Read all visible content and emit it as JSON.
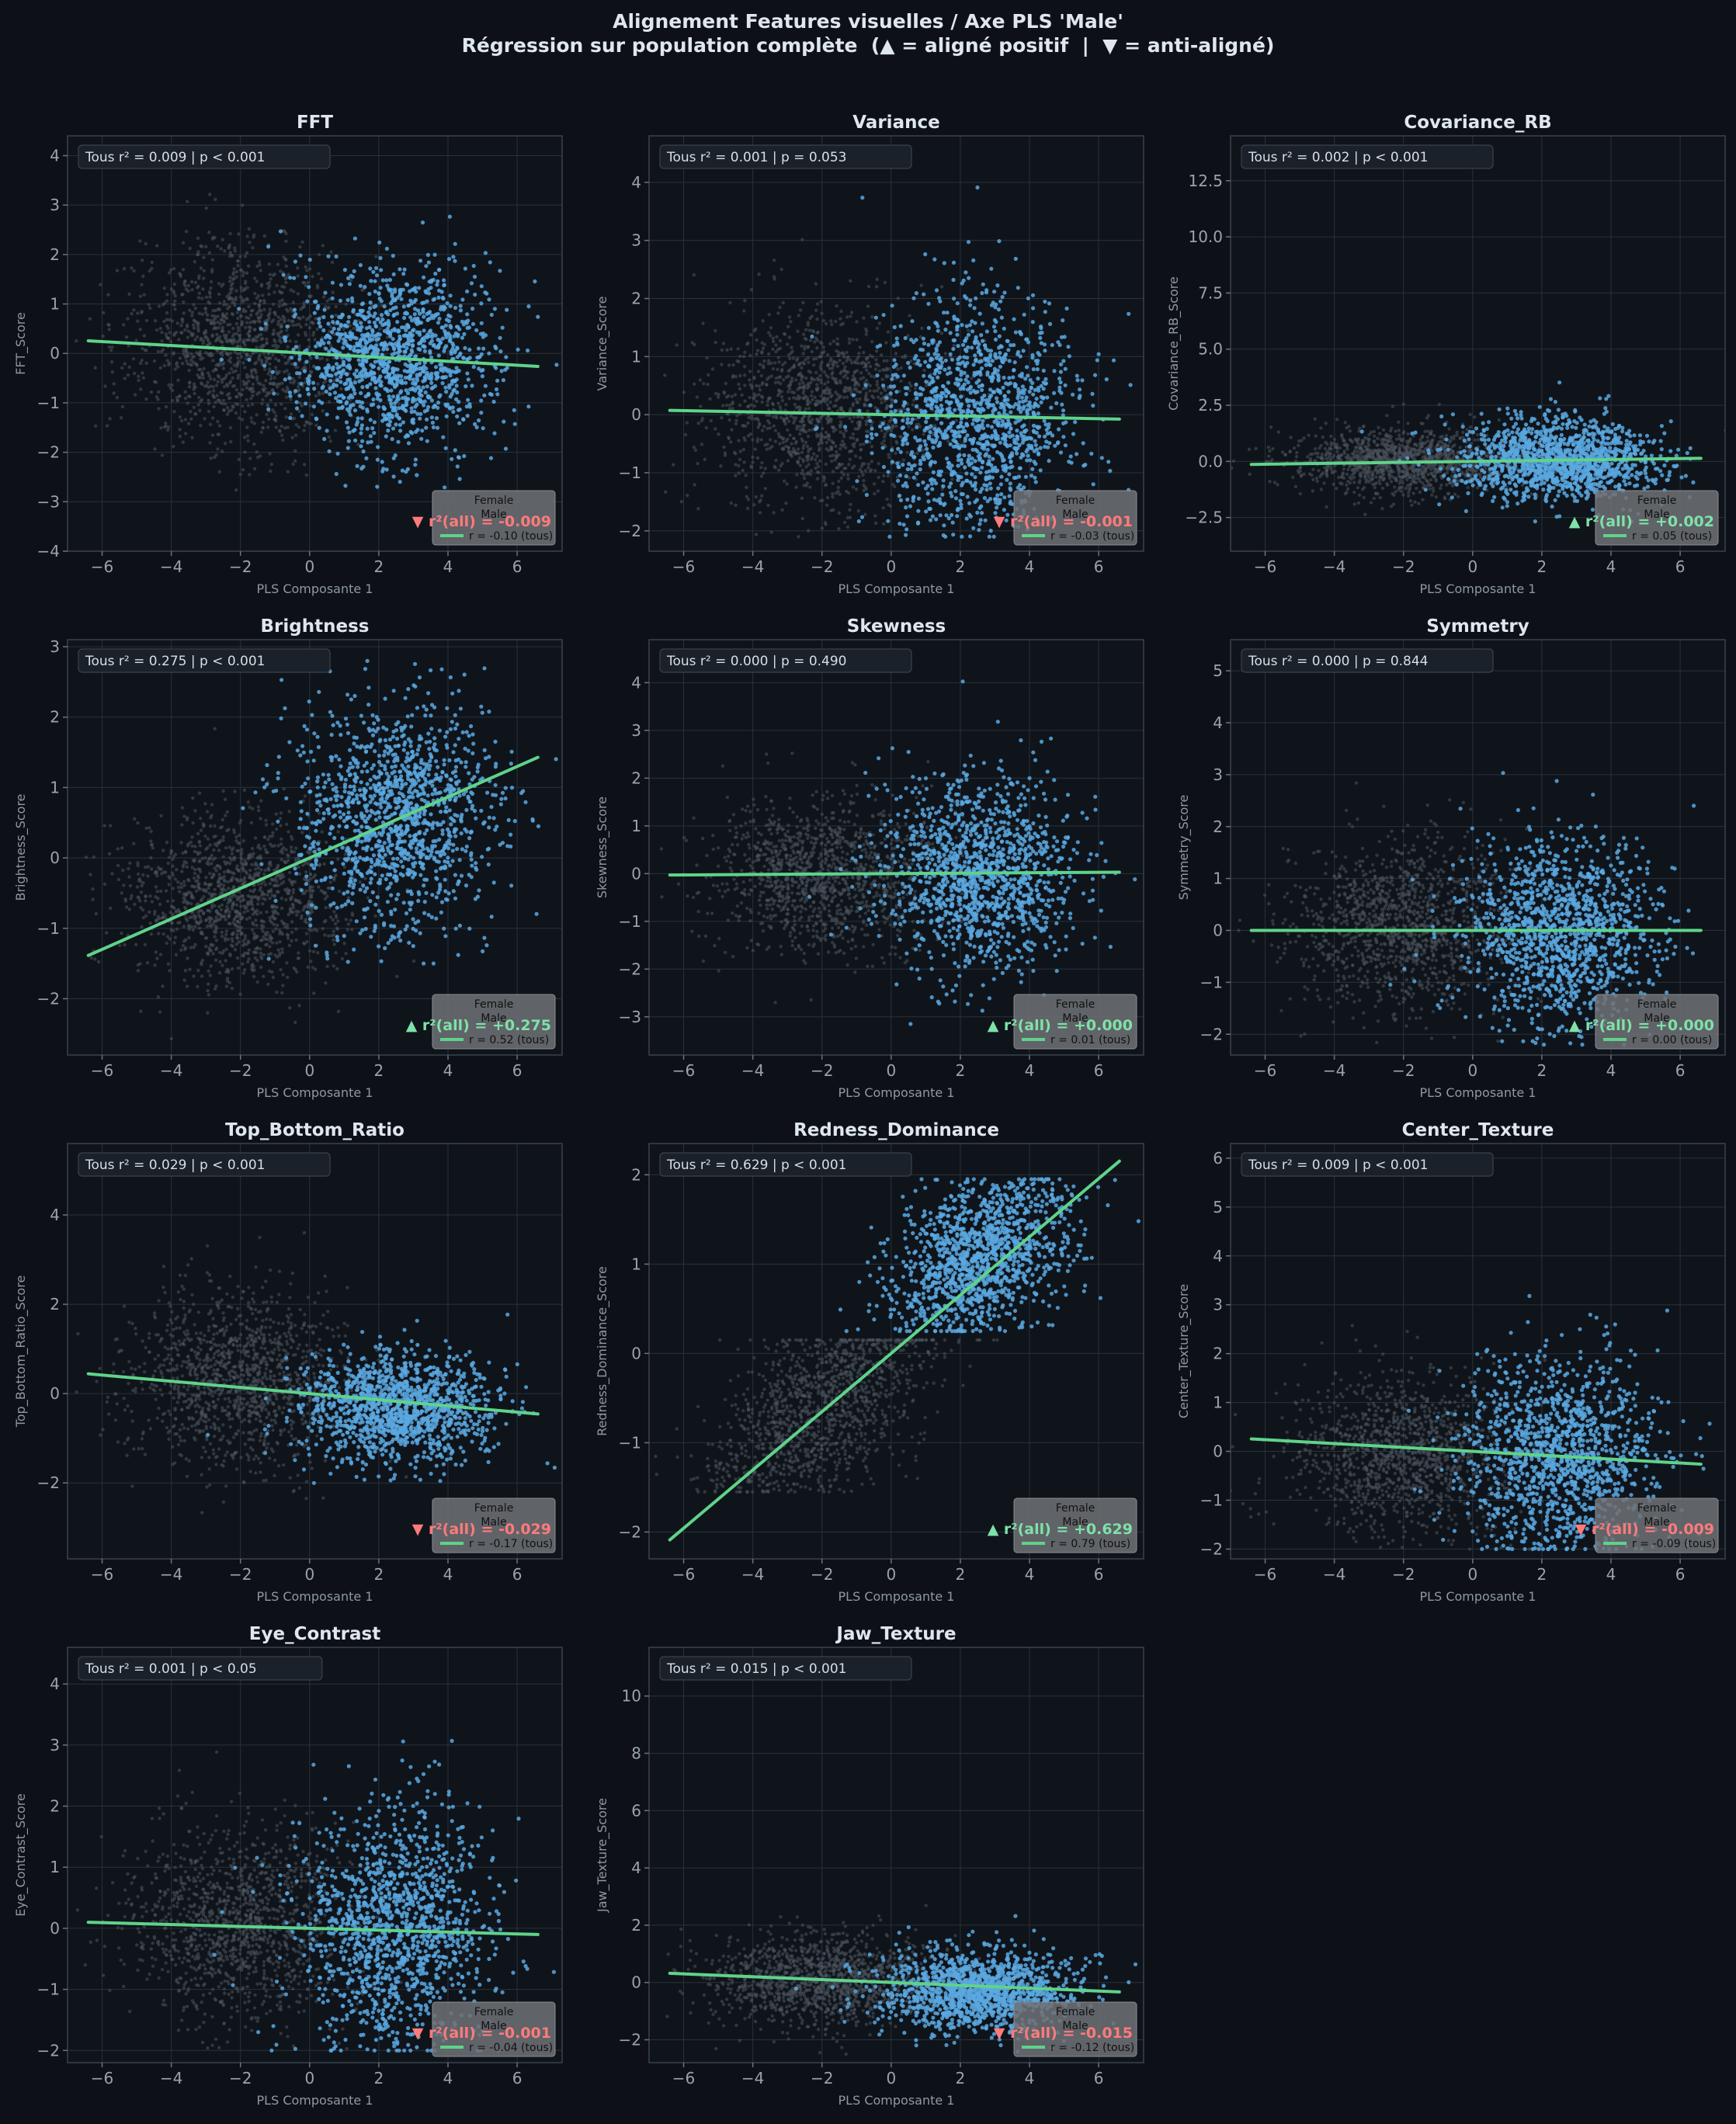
{
  "title_line1": "Alignement Features visuelles / Axe PLS 'Male'",
  "title_line2": "Régression sur population complète  (▲ = aligné positif  |  ▼ = anti-aligné)",
  "colors": {
    "background": "#0d1117",
    "panel": "#0f141b",
    "female_points": "#4d535c",
    "male_points": "#5ba8e0",
    "regression_line": "#5fd38a",
    "positive": "#7ee2a8",
    "negative": "#ff7b7b",
    "text": "#dfe6ee",
    "tick_text": "#9aa3ad"
  },
  "legend_labels": {
    "female": "Female",
    "male": "Male"
  },
  "chart_data": [
    {
      "type": "scatter",
      "title": "FFT",
      "xlabel": "PLS Composante 1",
      "ylabel": "FFT_Score",
      "xlim": [
        -7,
        7.3
      ],
      "ylim": [
        -4,
        4.4
      ],
      "xticks": [
        -6,
        -4,
        -2,
        0,
        2,
        4,
        6
      ],
      "yticks": [
        -4,
        -3,
        -2,
        -1,
        0,
        1,
        2,
        3,
        4
      ],
      "ytick_decimals": 0,
      "info": "Tous  r² = 0.009  |  p < 0.001",
      "r2_label": "r²(all) = -0.009",
      "direction": "negative",
      "r_label": "r = -0.10 (tous)",
      "regression": {
        "slope": -0.0398,
        "intercept": 0.0
      },
      "female": {
        "cx": -2.0,
        "sx": 1.6,
        "cy": 0.2,
        "sy": 1.0,
        "slope": 0.0,
        "ymin": -3.5,
        "ymax": 3.8
      },
      "male": {
        "cx": 2.5,
        "sx": 1.4,
        "cy": -0.1,
        "sy": 0.9,
        "slope": 0.0,
        "ymin": -3.3,
        "ymax": 3.9
      }
    },
    {
      "type": "scatter",
      "title": "Variance",
      "xlabel": "PLS Composante 1",
      "ylabel": "Variance_Score",
      "xlim": [
        -7,
        7.3
      ],
      "ylim": [
        -2.35,
        4.8
      ],
      "xticks": [
        -6,
        -4,
        -2,
        0,
        2,
        4,
        6
      ],
      "yticks": [
        -2,
        -1,
        0,
        1,
        2,
        3,
        4
      ],
      "ytick_decimals": 0,
      "info": "Tous  r² = 0.001  |  p = 0.053",
      "r2_label": "r²(all) = -0.001",
      "direction": "negative",
      "r_label": "r = -0.03 (tous)",
      "regression": {
        "slope": -0.0115,
        "intercept": -0.0
      },
      "female": {
        "cx": -2.0,
        "sx": 1.6,
        "cy": 0.1,
        "sy": 0.8,
        "slope": 0.0,
        "ymin": -2.1,
        "ymax": 3.4
      },
      "male": {
        "cx": 2.5,
        "sx": 1.4,
        "cy": 0.0,
        "sy": 1.0,
        "slope": 0.0,
        "ymin": -2.1,
        "ymax": 4.3
      }
    },
    {
      "type": "scatter",
      "title": "Covariance_RB",
      "xlabel": "PLS Composante 1",
      "ylabel": "Covariance_RB_Score",
      "xlim": [
        -7,
        7.3
      ],
      "ylim": [
        -4.0,
        14.5
      ],
      "xticks": [
        -6,
        -4,
        -2,
        0,
        2,
        4,
        6
      ],
      "yticks": [
        -2.5,
        0.0,
        2.5,
        5.0,
        7.5,
        10.0,
        12.5
      ],
      "ytick_decimals": 1,
      "info": "Tous  r² = 0.002  |  p < 0.001",
      "r2_label": "r²(all) = +0.002",
      "direction": "positive",
      "r_label": "r = 0.05 (tous)",
      "regression": {
        "slope": 0.0209,
        "intercept": 0.0
      },
      "female": {
        "cx": -2.0,
        "sx": 1.6,
        "cy": 0.0,
        "sy": 0.7,
        "slope": 0.0,
        "ymin": -2.5,
        "ymax": 5.0
      },
      "male": {
        "cx": 2.5,
        "sx": 1.4,
        "cy": 0.1,
        "sy": 0.9,
        "slope": 0.0,
        "ymin": -2.7,
        "ymax": 9.0
      }
    },
    {
      "type": "scatter",
      "title": "Brightness",
      "xlabel": "PLS Composante 1",
      "ylabel": "Brightness_Score",
      "xlim": [
        -7,
        7.3
      ],
      "ylim": [
        -2.8,
        3.1
      ],
      "xticks": [
        -6,
        -4,
        -2,
        0,
        2,
        4,
        6
      ],
      "yticks": [
        -2,
        -1,
        0,
        1,
        2,
        3
      ],
      "ytick_decimals": 0,
      "info": "Tous  r² = 0.275  |  p < 0.001",
      "r2_label": "r²(all) = +0.275",
      "direction": "positive",
      "r_label": "r = 0.52 (tous)",
      "regression": {
        "slope": 0.2165,
        "intercept": 0.0
      },
      "female": {
        "cx": -2.0,
        "sx": 1.6,
        "cy": -0.6,
        "sy": 0.6,
        "slope": 0.0,
        "ymin": -2.7,
        "ymax": 2.0
      },
      "male": {
        "cx": 2.5,
        "sx": 1.4,
        "cy": 0.6,
        "sy": 0.8,
        "slope": 0.0,
        "ymin": -1.5,
        "ymax": 2.8
      }
    },
    {
      "type": "scatter",
      "title": "Skewness",
      "xlabel": "PLS Composante 1",
      "ylabel": "Skewness_Score",
      "xlim": [
        -7,
        7.3
      ],
      "ylim": [
        -3.8,
        4.9
      ],
      "xticks": [
        -6,
        -4,
        -2,
        0,
        2,
        4,
        6
      ],
      "yticks": [
        -3,
        -2,
        -1,
        0,
        1,
        2,
        3,
        4
      ],
      "ytick_decimals": 0,
      "info": "Tous  r² = 0.000  |  p = 0.490",
      "r2_label": "r²(all) = +0.000",
      "direction": "positive",
      "r_label": "r = 0.01 (tous)",
      "regression": {
        "slope": 0.0046,
        "intercept": 0.0
      },
      "female": {
        "cx": -2.0,
        "sx": 1.6,
        "cy": 0.0,
        "sy": 0.8,
        "slope": 0.0,
        "ymin": -3.2,
        "ymax": 3.6
      },
      "male": {
        "cx": 2.5,
        "sx": 1.4,
        "cy": 0.0,
        "sy": 1.0,
        "slope": 0.0,
        "ymin": -3.3,
        "ymax": 4.5
      }
    },
    {
      "type": "scatter",
      "title": "Symmetry",
      "xlabel": "PLS Composante 1",
      "ylabel": "Symmetry_Score",
      "xlim": [
        -7,
        7.3
      ],
      "ylim": [
        -2.4,
        5.6
      ],
      "xticks": [
        -6,
        -4,
        -2,
        0,
        2,
        4,
        6
      ],
      "yticks": [
        -2,
        -1,
        0,
        1,
        2,
        3,
        4,
        5
      ],
      "ytick_decimals": 0,
      "info": "Tous  r² = 0.000  |  p = 0.844",
      "r2_label": "r²(all) = +0.000",
      "direction": "positive",
      "r_label": "r = 0.00 (tous)",
      "regression": {
        "slope": 0.0,
        "intercept": 0.0
      },
      "female": {
        "cx": -2.0,
        "sx": 1.6,
        "cy": 0.1,
        "sy": 0.8,
        "slope": 0.0,
        "ymin": -2.2,
        "ymax": 4.4
      },
      "male": {
        "cx": 2.5,
        "sx": 1.4,
        "cy": 0.0,
        "sy": 0.9,
        "slope": 0.0,
        "ymin": -2.2,
        "ymax": 5.0
      }
    },
    {
      "type": "scatter",
      "title": "Top_Bottom_Ratio",
      "xlabel": "PLS Composante 1",
      "ylabel": "Top_Bottom_Ratio_Score",
      "xlim": [
        -7,
        7.3
      ],
      "ylim": [
        -3.7,
        5.6
      ],
      "xticks": [
        -6,
        -4,
        -2,
        0,
        2,
        4,
        6
      ],
      "yticks": [
        -2,
        0,
        2,
        4
      ],
      "ytick_decimals": 0,
      "info": "Tous  r² = 0.029  |  p < 0.001",
      "r2_label": "r²(all) = -0.029",
      "direction": "negative",
      "r_label": "r = -0.17 (tous)",
      "regression": {
        "slope": -0.0692,
        "intercept": 0.0
      },
      "female": {
        "cx": -2.0,
        "sx": 1.6,
        "cy": 0.3,
        "sy": 1.0,
        "slope": 0.0,
        "ymin": -3.0,
        "ymax": 5.0
      },
      "male": {
        "cx": 2.5,
        "sx": 1.4,
        "cy": -0.3,
        "sy": 0.6,
        "slope": 0.0,
        "ymin": -2.5,
        "ymax": 2.8
      }
    },
    {
      "type": "scatter",
      "title": "Redness_Dominance",
      "xlabel": "PLS Composante 1",
      "ylabel": "Redness_Dominance_Score",
      "xlim": [
        -7,
        7.3
      ],
      "ylim": [
        -2.3,
        2.35
      ],
      "xticks": [
        -6,
        -4,
        -2,
        0,
        2,
        4,
        6
      ],
      "yticks": [
        -2,
        -1,
        0,
        1,
        2
      ],
      "ytick_decimals": 0,
      "info": "Tous  r² = 0.629  |  p < 0.001",
      "r2_label": "r²(all) = +0.629",
      "direction": "positive",
      "r_label": "r = 0.79 (tous)",
      "regression": {
        "slope": 0.3262,
        "intercept": 0.0
      },
      "female": {
        "cx": -2.0,
        "sx": 1.5,
        "cy": -0.6,
        "sy": 0.5,
        "slope": 0.2,
        "ymin": -1.55,
        "ymax": 0.15
      },
      "male": {
        "cx": 2.5,
        "sx": 1.3,
        "cy": 1.1,
        "sy": 0.45,
        "slope": 0.15,
        "ymin": 0.25,
        "ymax": 1.95
      }
    },
    {
      "type": "scatter",
      "title": "Center_Texture",
      "xlabel": "PLS Composante 1",
      "ylabel": "Center_Texture_Score",
      "xlim": [
        -7,
        7.3
      ],
      "ylim": [
        -2.2,
        6.3
      ],
      "xticks": [
        -6,
        -4,
        -2,
        0,
        2,
        4,
        6
      ],
      "yticks": [
        -2,
        -1,
        0,
        1,
        2,
        3,
        4,
        5,
        6
      ],
      "ytick_decimals": 0,
      "info": "Tous  r² = 0.009  |  p < 0.001",
      "r2_label": "r²(all) = -0.009",
      "direction": "negative",
      "r_label": "r = -0.09 (tous)",
      "regression": {
        "slope": -0.0398,
        "intercept": 0.0
      },
      "female": {
        "cx": -2.0,
        "sx": 1.6,
        "cy": 0.0,
        "sy": 0.8,
        "slope": 0.0,
        "ymin": -2.0,
        "ymax": 5.0
      },
      "male": {
        "cx": 2.5,
        "sx": 1.4,
        "cy": -0.1,
        "sy": 1.0,
        "slope": 0.0,
        "ymin": -2.0,
        "ymax": 4.5
      }
    },
    {
      "type": "scatter",
      "title": "Eye_Contrast",
      "xlabel": "PLS Composante 1",
      "ylabel": "Eye_Contrast_Score",
      "xlim": [
        -7,
        7.3
      ],
      "ylim": [
        -2.2,
        4.6
      ],
      "xticks": [
        -6,
        -4,
        -2,
        0,
        2,
        4,
        6
      ],
      "yticks": [
        -2,
        -1,
        0,
        1,
        2,
        3,
        4
      ],
      "ytick_decimals": 0,
      "info": "Tous  r² = 0.001  |  p < 0.05",
      "r2_label": "r²(all) = -0.001",
      "direction": "negative",
      "r_label": "r = -0.04 (tous)",
      "regression": {
        "slope": -0.0154,
        "intercept": 0.0
      },
      "female": {
        "cx": -2.0,
        "sx": 1.6,
        "cy": 0.1,
        "sy": 0.8,
        "slope": 0.0,
        "ymin": -2.0,
        "ymax": 3.9
      },
      "male": {
        "cx": 2.5,
        "sx": 1.4,
        "cy": 0.0,
        "sy": 1.0,
        "slope": 0.0,
        "ymin": -2.0,
        "ymax": 4.4
      }
    },
    {
      "type": "scatter",
      "title": "Jaw_Texture",
      "xlabel": "PLS Composante 1",
      "ylabel": "Jaw_Texture_Score",
      "xlim": [
        -7,
        7.3
      ],
      "ylim": [
        -2.8,
        11.7
      ],
      "xticks": [
        -6,
        -4,
        -2,
        0,
        2,
        4,
        6
      ],
      "yticks": [
        -2,
        0,
        2,
        4,
        6,
        8,
        10
      ],
      "ytick_decimals": 0,
      "info": "Tous  r² = 0.015  |  p < 0.001",
      "r2_label": "r²(all) = -0.015",
      "direction": "negative",
      "r_label": "r = -0.12 (tous)",
      "regression": {
        "slope": -0.05,
        "intercept": 0.0
      },
      "female": {
        "cx": -2.0,
        "sx": 1.6,
        "cy": 0.1,
        "sy": 0.8,
        "slope": 0.0,
        "ymin": -2.5,
        "ymax": 6.0
      },
      "male": {
        "cx": 2.5,
        "sx": 1.4,
        "cy": -0.3,
        "sy": 0.7,
        "slope": 0.0,
        "ymin": -2.5,
        "ymax": 11.0
      }
    }
  ]
}
